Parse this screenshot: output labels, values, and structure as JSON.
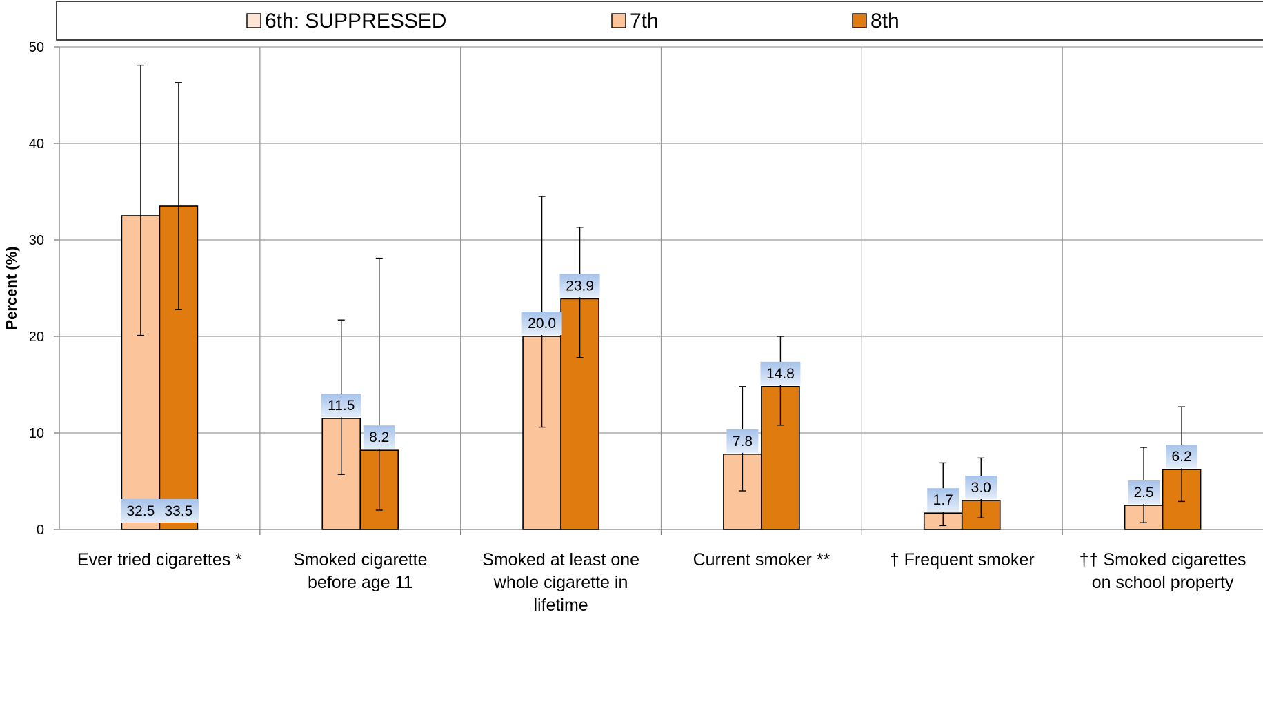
{
  "chart_data": {
    "type": "bar",
    "ylabel": "Percent (%)",
    "ylim": [
      0,
      50
    ],
    "yticks": [
      0,
      10,
      20,
      30,
      40,
      50
    ],
    "grid": true,
    "legend_position": "top",
    "categories": [
      [
        "Ever tried cigarettes *"
      ],
      [
        "Smoked cigarette",
        "before age 11"
      ],
      [
        "Smoked at least one",
        "whole cigarette in",
        "lifetime"
      ],
      [
        "Current smoker **"
      ],
      [
        "† Frequent smoker"
      ],
      [
        "†† Smoked cigarettes",
        "on school property"
      ]
    ],
    "series": [
      {
        "name": "6th: SUPPRESSED",
        "color": "#fde5d6",
        "values": [
          null,
          null,
          null,
          null,
          null,
          null
        ],
        "ci_low": [],
        "ci_high": []
      },
      {
        "name": "7th",
        "color": "#fbc49b",
        "values": [
          32.5,
          11.5,
          20.0,
          7.8,
          1.7,
          2.5
        ],
        "ci_low": [
          20.1,
          5.7,
          10.6,
          4.0,
          0.4,
          0.7
        ],
        "ci_high": [
          48.1,
          21.7,
          34.5,
          14.8,
          6.9,
          8.5
        ]
      },
      {
        "name": "8th",
        "color": "#e07b0f",
        "values": [
          33.5,
          8.2,
          23.9,
          14.8,
          3.0,
          6.2
        ],
        "ci_low": [
          22.8,
          2.0,
          17.8,
          10.8,
          1.2,
          2.9
        ],
        "ci_high": [
          46.3,
          28.1,
          31.3,
          20.0,
          7.4,
          12.7
        ]
      }
    ],
    "value_labels": [
      [
        "32.5",
        "11.5",
        "20.0",
        "7.8",
        "1.7",
        "2.5"
      ],
      [
        "33.5",
        "8.2",
        "23.9",
        "14.8",
        "3.0",
        "6.2"
      ]
    ]
  }
}
